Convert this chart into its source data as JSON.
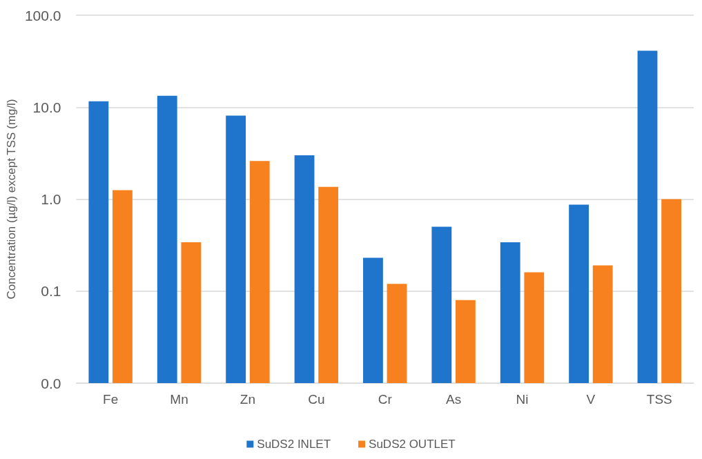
{
  "chart_data": {
    "type": "bar",
    "ylabel": "Concentration (µg/l) except TSS (mg/l)",
    "categories": [
      "Fe",
      "Mn",
      "Zn",
      "Cu",
      "Cr",
      "As",
      "Ni",
      "V",
      "TSS"
    ],
    "series": [
      {
        "name": "SuDS2 INLET",
        "color": "#1f74cc",
        "values": [
          11.6,
          13.3,
          8.1,
          3.0,
          0.23,
          0.5,
          0.34,
          0.87,
          41
        ]
      },
      {
        "name": "SuDS2 OUTLET",
        "color": "#f7811f",
        "values": [
          1.25,
          0.34,
          2.6,
          1.36,
          0.12,
          0.08,
          0.16,
          0.19,
          1.0
        ]
      }
    ],
    "log": "y",
    "ylim": [
      0.01,
      100
    ],
    "yticks": [
      {
        "value": 0.01,
        "label": "0.0"
      },
      {
        "value": 0.1,
        "label": "0.1"
      },
      {
        "value": 1,
        "label": "1.0"
      },
      {
        "value": 10,
        "label": "10.0"
      },
      {
        "value": 100,
        "label": "100.0"
      }
    ],
    "grid": "y",
    "legend": "bottom"
  }
}
